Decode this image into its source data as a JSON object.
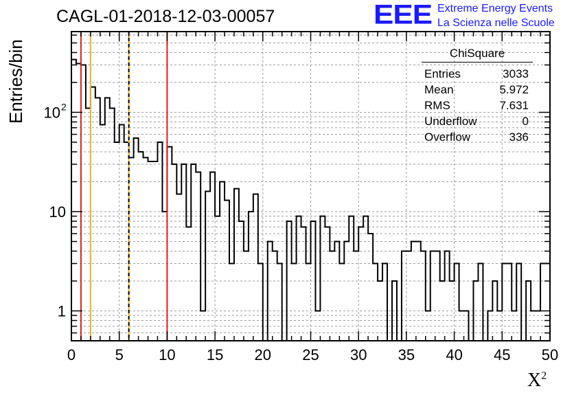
{
  "run_title": "CAGL-01-2018-12-03-00057",
  "logo": {
    "mark": "EEE",
    "line1": "Extreme Energy Events",
    "line2": "La Scienza nelle Scuole",
    "color": "#1a1aff"
  },
  "stats_box": {
    "title": "ChiSquare",
    "rows": [
      {
        "label": "Entries",
        "value": "3033"
      },
      {
        "label": "Mean",
        "value": "5.972"
      },
      {
        "label": "RMS",
        "value": "7.631"
      },
      {
        "label": "Underflow",
        "value": "0"
      },
      {
        "label": "Overflow",
        "value": "336"
      }
    ]
  },
  "chart_data": {
    "type": "histogram",
    "title": "CAGL-01-2018-12-03-00057",
    "ylabel": "Entries/bin",
    "xlabel_base": "X",
    "xlabel_sup": "2",
    "xlim": [
      0,
      50
    ],
    "ylim": [
      0.5,
      650
    ],
    "y_scale": "log",
    "grid": true,
    "bin_width": 0.5,
    "x_ticks": [
      "0",
      "5",
      "10",
      "15",
      "20",
      "25",
      "30",
      "35",
      "40",
      "45",
      "50"
    ],
    "y_ticks": [
      {
        "value": 1,
        "label": "1"
      },
      {
        "value": 10,
        "label": "10"
      },
      {
        "value": 100,
        "label": "10",
        "sup": "2"
      }
    ],
    "values": [
      340,
      310,
      300,
      110,
      180,
      140,
      75,
      140,
      110,
      50,
      75,
      50,
      35,
      55,
      40,
      35,
      32,
      32,
      50,
      10,
      45,
      30,
      15,
      30,
      7,
      30,
      25,
      1,
      16,
      25,
      9,
      20,
      13,
      3,
      17,
      8,
      4,
      10,
      15,
      3,
      0,
      5,
      4,
      3,
      0,
      8,
      3,
      9,
      7,
      3,
      8,
      1,
      9,
      7,
      4,
      5,
      3,
      5,
      9,
      4,
      7,
      9,
      6,
      3,
      2,
      3,
      0,
      2,
      0,
      4,
      4,
      5,
      5,
      4,
      1,
      4,
      4,
      2,
      4,
      2,
      3,
      1,
      1,
      0,
      2,
      3,
      0,
      1,
      2,
      1,
      3,
      3,
      1,
      3,
      0,
      2,
      1,
      1,
      3,
      3
    ],
    "vertical_lines": [
      {
        "x": 1,
        "color": "#e0201a",
        "style": "solid"
      },
      {
        "x": 2,
        "color": "#f2b01e",
        "style": "solid"
      },
      {
        "x": 6,
        "color": "#f2b01e",
        "style": "solid"
      },
      {
        "x": 6,
        "color": "#000000",
        "style": "dashed"
      },
      {
        "x": 10,
        "color": "#e0201a",
        "style": "solid"
      }
    ]
  }
}
